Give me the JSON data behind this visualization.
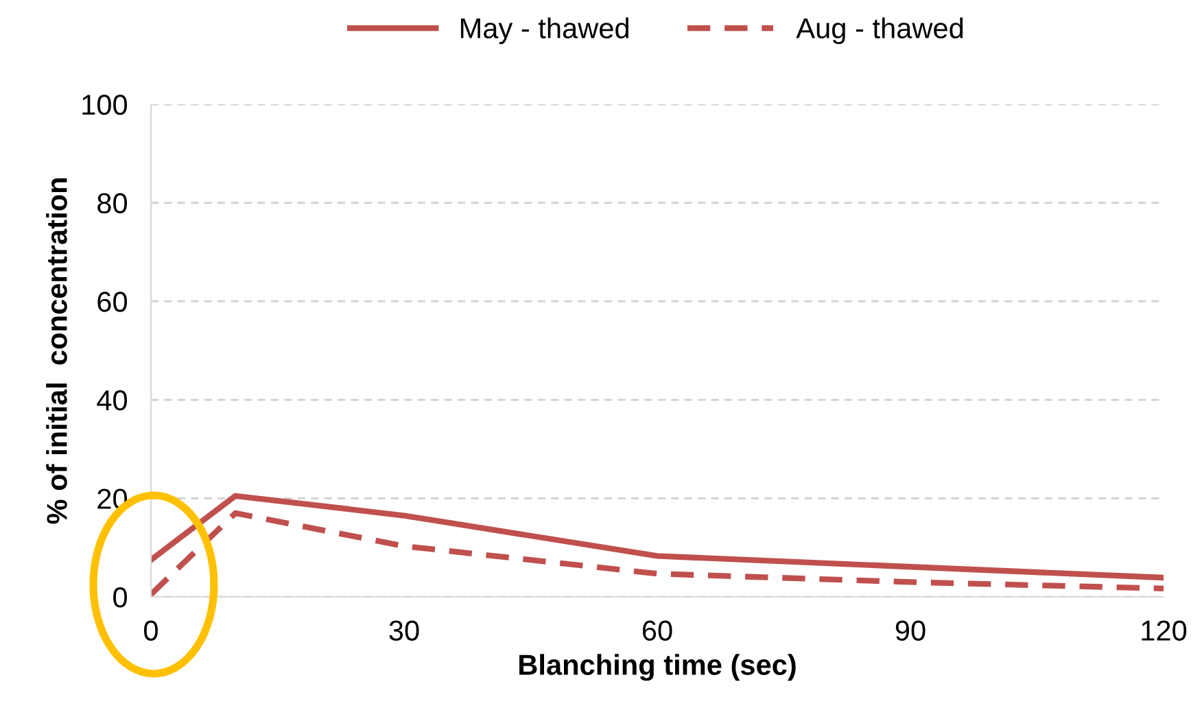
{
  "chart_data": {
    "type": "line",
    "xlabel": "Blanching time (sec)",
    "ylabel": "% of initial  concentration",
    "series": [
      {
        "name": "May - thawed",
        "color": "#c0504d",
        "line_style": "solid",
        "x": [
          0,
          10,
          30,
          60,
          120
        ],
        "values": [
          7.5,
          20.5,
          16.5,
          8.3,
          3.9
        ]
      },
      {
        "name": "Aug - thawed",
        "color": "#c0504d",
        "line_style": "dashed",
        "x": [
          0,
          10,
          30,
          60,
          90,
          120
        ],
        "values": [
          0.5,
          17,
          10.3,
          4.7,
          3,
          1.7
        ]
      }
    ],
    "xlim": [
      0,
      120
    ],
    "xticks": [
      0,
      30,
      60,
      90,
      120
    ],
    "ylim": [
      0,
      100
    ],
    "yticks": [
      0,
      20,
      40,
      60,
      80,
      100
    ],
    "grid": "y",
    "legend": "top",
    "marker": "none"
  }
}
